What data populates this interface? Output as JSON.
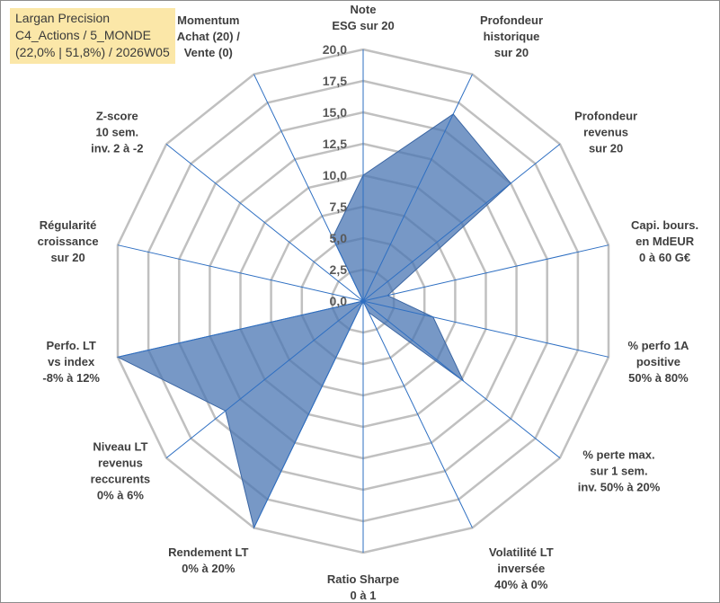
{
  "chart_data": {
    "type": "radar",
    "title_lines": [
      "Largan Precision",
      "C4_Actions / 5_MONDE",
      "(22,0% | 51,8%) / 2026W05"
    ],
    "rlim": [
      0,
      20
    ],
    "rticks": [
      "0,0",
      "2,5",
      "5,0",
      "7,5",
      "10,0",
      "12,5",
      "15,0",
      "17,5",
      "20,0"
    ],
    "grid": true,
    "axes": [
      {
        "label": [
          "Note",
          "ESG sur 20"
        ],
        "value": 10.0
      },
      {
        "label": [
          "Profondeur",
          "historique",
          "sur 20"
        ],
        "value": 16.5
      },
      {
        "label": [
          "Profondeur",
          "revenus",
          "sur 20"
        ],
        "value": 15.0
      },
      {
        "label": [
          "Capi. bours.",
          "en MdEUR",
          "0 à 60 G€"
        ],
        "value": 2.0
      },
      {
        "label": [
          "% perfo 1A",
          "positive",
          "50% à 80%"
        ],
        "value": 5.7
      },
      {
        "label": [
          "% perte max.",
          "sur 1 sem.",
          "inv. 50% à 20%"
        ],
        "value": 10.2
      },
      {
        "label": [
          "Volatilité LT",
          "inversée",
          "40% à 0%"
        ],
        "value": 1.0
      },
      {
        "label": [
          "Ratio Sharpe",
          "0 à 1"
        ],
        "value": 0.0
      },
      {
        "label": [
          "Rendement LT",
          "0% à 20%"
        ],
        "value": 20.0
      },
      {
        "label": [
          "Niveau LT",
          "revenus",
          "reccurents",
          "0% à 6%"
        ],
        "value": 14.0
      },
      {
        "label": [
          "Perfo. LT",
          "vs index",
          "-8% à 12%"
        ],
        "value": 20.0
      },
      {
        "label": [
          "Régularité",
          "croissance",
          "sur 20"
        ],
        "value": 0.0
      },
      {
        "label": [
          "Z-score",
          "10 sem.",
          "inv. 2 à -2"
        ],
        "value": 0.0
      },
      {
        "label": [
          "Momentum",
          "Achat (20) /",
          "Vente (0)"
        ],
        "value": 5.6
      }
    ],
    "series": [
      {
        "name": "Largan Precision",
        "color": "#4a76b3",
        "fill_opacity": 0.75
      }
    ],
    "grid_color": "#c0c0c0",
    "spoke_color": "#2e6fc2"
  }
}
